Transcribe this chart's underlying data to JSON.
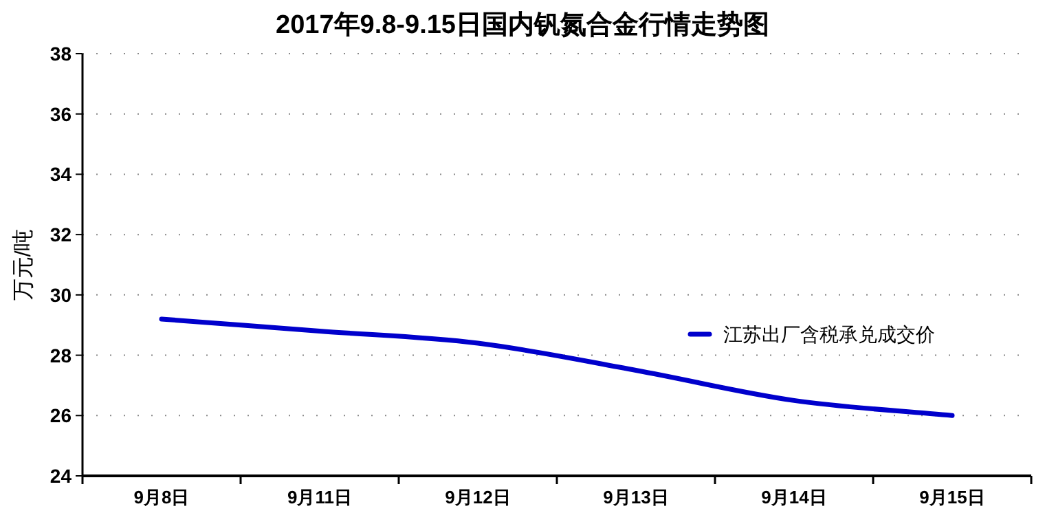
{
  "chart_data": {
    "type": "line",
    "title": "2017年9.8-9.15日国内钒氮合金行情走势图",
    "ylabel": "万元/吨",
    "categories": [
      "9月8日",
      "9月11日",
      "9月12日",
      "9月13日",
      "9月14日",
      "9月15日"
    ],
    "series": [
      {
        "name": "江苏出厂含税承兑成交价",
        "color": "#0000cc",
        "values": [
          29.2,
          28.8,
          28.4,
          27.5,
          26.5,
          26.0
        ]
      }
    ],
    "ylim": [
      24,
      38
    ],
    "yticks": [
      24,
      26,
      28,
      30,
      32,
      34,
      36,
      38
    ],
    "grid": "y",
    "legend": "right",
    "marker": "none",
    "line_style": "solid"
  }
}
